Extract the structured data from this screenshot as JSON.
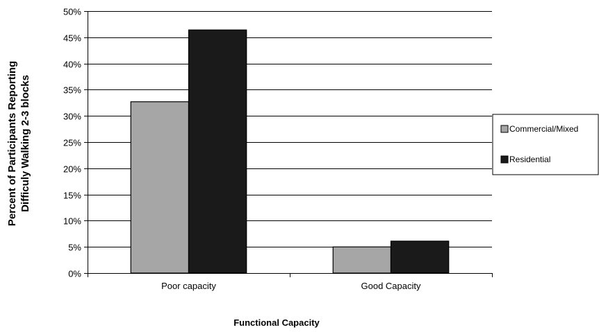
{
  "chart_data": {
    "type": "bar",
    "categories": [
      "Poor capacity",
      "Good Capacity"
    ],
    "series": [
      {
        "name": "Commercial/Mixed",
        "values": [
          32.7,
          5.0
        ],
        "color": "#a6a6a6"
      },
      {
        "name": "Residential",
        "values": [
          46.4,
          6.1
        ],
        "color": "#1a1a1a"
      }
    ],
    "xlabel": "Functional Capacity",
    "ylabel": [
      "Percent of Participants Reporting",
      "Difficuly Walking 2-3 blocks"
    ],
    "ylim": [
      0,
      50
    ],
    "ytick_step": 5,
    "ytick_suffix": "%",
    "grid": true,
    "legend_position": "right"
  }
}
